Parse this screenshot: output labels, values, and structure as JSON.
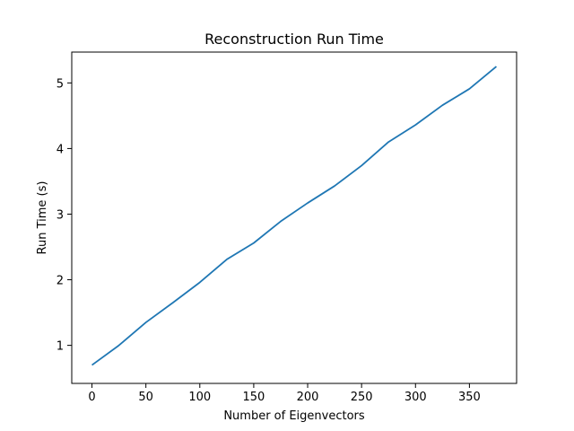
{
  "chart_data": {
    "type": "line",
    "title": "Reconstruction Run Time",
    "xlabel": "Number of Eigenvectors",
    "ylabel": "Run Time (s)",
    "xlim": [
      -18.75,
      393.75
    ],
    "ylim": [
      0.42,
      5.47
    ],
    "xticks": [
      0,
      50,
      100,
      150,
      200,
      250,
      300,
      350
    ],
    "yticks": [
      1,
      2,
      3,
      4,
      5
    ],
    "grid": false,
    "series": [
      {
        "color": "#1f77b4",
        "x": [
          0,
          25,
          50,
          75,
          100,
          125,
          150,
          175,
          200,
          225,
          250,
          275,
          300,
          325,
          350,
          375
        ],
        "y": [
          0.7,
          1.0,
          1.35,
          1.65,
          1.96,
          2.31,
          2.56,
          2.89,
          3.17,
          3.43,
          3.74,
          4.1,
          4.36,
          4.66,
          4.91,
          5.25
        ]
      }
    ]
  }
}
